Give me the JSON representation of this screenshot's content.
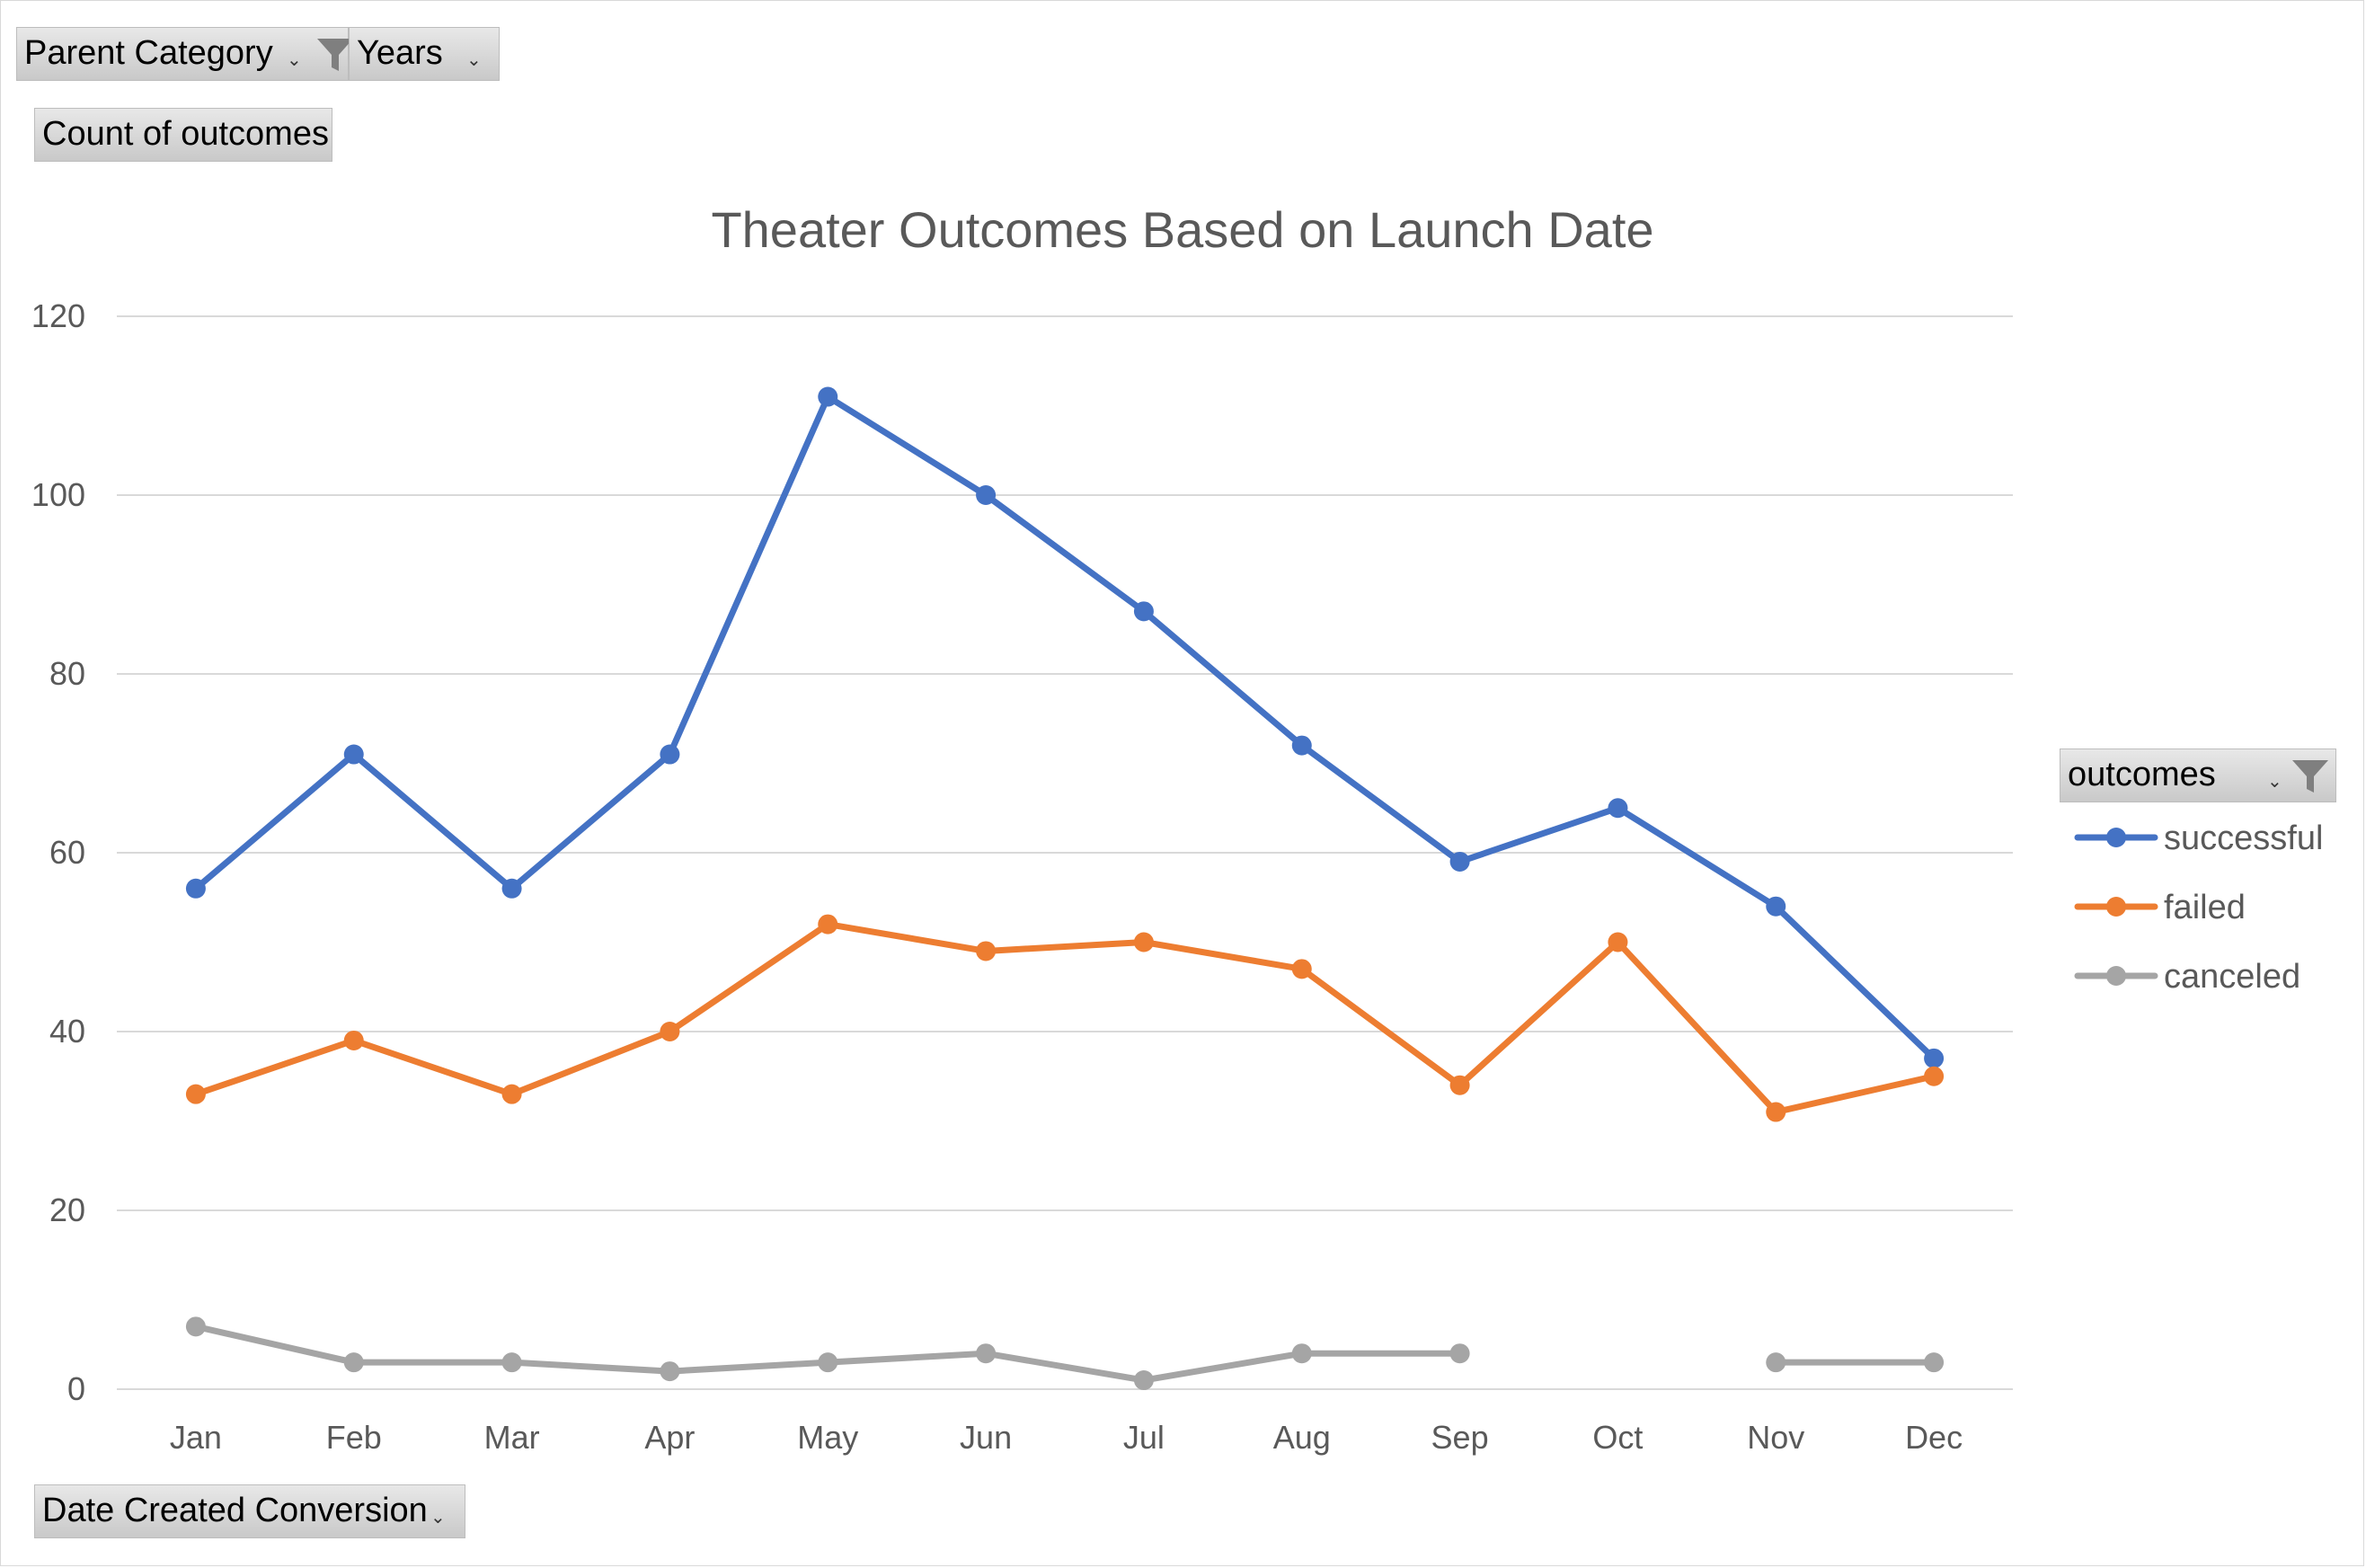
{
  "filters": {
    "parent_category": "Parent Category",
    "years": "Years",
    "values_field": "Count of outcomes",
    "axis_field": "Date Created Conversion",
    "legend_field": "outcomes"
  },
  "colors": {
    "successful": "#4472c4",
    "failed": "#ed7d31",
    "canceled": "#a5a5a5",
    "grid": "#d9d9d9",
    "text": "#595959"
  },
  "chart_data": {
    "type": "line",
    "title": "Theater Outcomes Based on Launch Date",
    "xlabel": "",
    "ylabel": "",
    "categories": [
      "Jan",
      "Feb",
      "Mar",
      "Apr",
      "May",
      "Jun",
      "Jul",
      "Aug",
      "Sep",
      "Oct",
      "Nov",
      "Dec"
    ],
    "ylim": [
      0,
      120
    ],
    "yticks": [
      0,
      20,
      40,
      60,
      80,
      100,
      120
    ],
    "grid": true,
    "legend_position": "right",
    "series": [
      {
        "name": "successful",
        "values": [
          56,
          71,
          56,
          71,
          111,
          100,
          87,
          72,
          59,
          65,
          54,
          37
        ]
      },
      {
        "name": "failed",
        "values": [
          33,
          39,
          33,
          40,
          52,
          49,
          50,
          47,
          34,
          50,
          31,
          35
        ]
      },
      {
        "name": "canceled",
        "values": [
          7,
          3,
          3,
          2,
          3,
          4,
          1,
          4,
          4,
          null,
          3,
          3
        ]
      }
    ]
  }
}
